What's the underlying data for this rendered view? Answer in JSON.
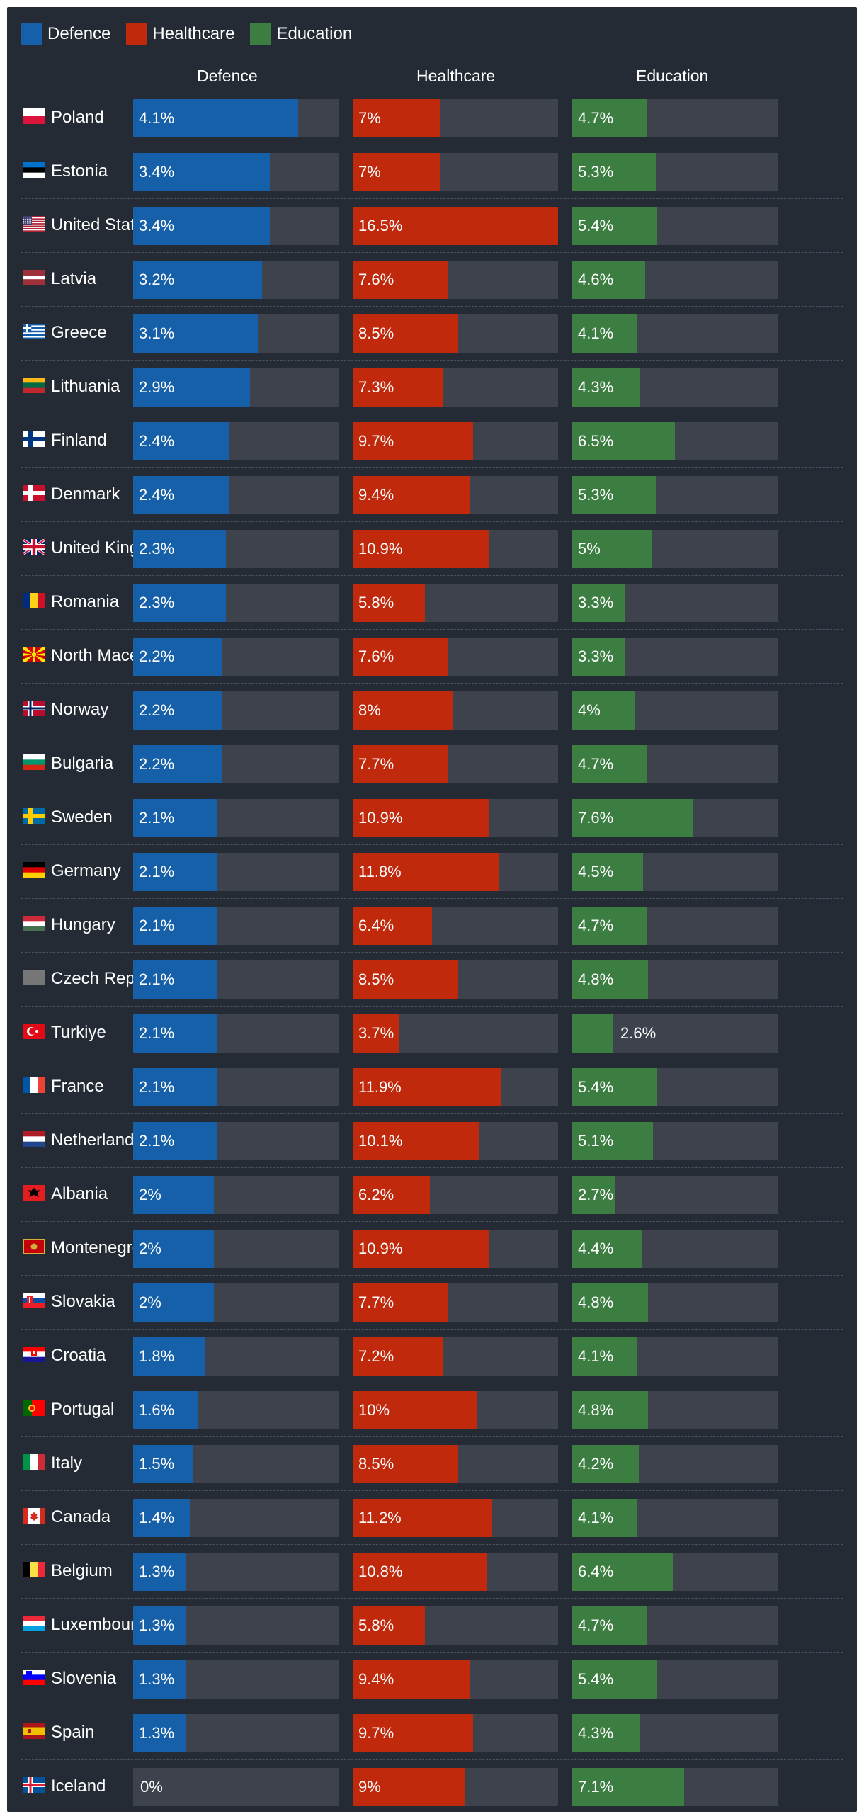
{
  "chart_data": {
    "type": "bar",
    "orientation": "horizontal",
    "layout": "small-multiples",
    "unit": "%",
    "legend": [
      {
        "name": "Defence",
        "color": "#1560a8"
      },
      {
        "name": "Healthcare",
        "color": "#c1290c"
      },
      {
        "name": "Education",
        "color": "#3c7d41"
      }
    ],
    "column_headers": [
      "Defence",
      "Healthcare",
      "Education"
    ],
    "scale_max": {
      "defence": 5.1,
      "healthcare": 16.5,
      "education": 13.0
    },
    "rows": [
      {
        "country": "Poland",
        "flag": "pl",
        "defence": 4.1,
        "healthcare": 7,
        "education": 4.7
      },
      {
        "country": "Estonia",
        "flag": "ee",
        "defence": 3.4,
        "healthcare": 7,
        "education": 5.3
      },
      {
        "country": "United States",
        "flag": "us",
        "defence": 3.4,
        "healthcare": 16.5,
        "education": 5.4
      },
      {
        "country": "Latvia",
        "flag": "lv",
        "defence": 3.2,
        "healthcare": 7.6,
        "education": 4.6
      },
      {
        "country": "Greece",
        "flag": "gr",
        "defence": 3.1,
        "healthcare": 8.5,
        "education": 4.1
      },
      {
        "country": "Lithuania",
        "flag": "lt",
        "defence": 2.9,
        "healthcare": 7.3,
        "education": 4.3
      },
      {
        "country": "Finland",
        "flag": "fi",
        "defence": 2.4,
        "healthcare": 9.7,
        "education": 6.5
      },
      {
        "country": "Denmark",
        "flag": "dk",
        "defence": 2.4,
        "healthcare": 9.4,
        "education": 5.3
      },
      {
        "country": "United Kingdom",
        "flag": "gb",
        "defence": 2.3,
        "healthcare": 10.9,
        "education": 5
      },
      {
        "country": "Romania",
        "flag": "ro",
        "defence": 2.3,
        "healthcare": 5.8,
        "education": 3.3
      },
      {
        "country": "North Macedonia",
        "flag": "mk",
        "defence": 2.2,
        "healthcare": 7.6,
        "education": 3.3
      },
      {
        "country": "Norway",
        "flag": "no",
        "defence": 2.2,
        "healthcare": 8,
        "education": 4
      },
      {
        "country": "Bulgaria",
        "flag": "bg",
        "defence": 2.2,
        "healthcare": 7.7,
        "education": 4.7
      },
      {
        "country": "Sweden",
        "flag": "se",
        "defence": 2.1,
        "healthcare": 10.9,
        "education": 7.6
      },
      {
        "country": "Germany",
        "flag": "de",
        "defence": 2.1,
        "healthcare": 11.8,
        "education": 4.5
      },
      {
        "country": "Hungary",
        "flag": "hu",
        "defence": 2.1,
        "healthcare": 6.4,
        "education": 4.7
      },
      {
        "country": "Czech Republic",
        "flag": "cz",
        "defence": 2.1,
        "healthcare": 8.5,
        "education": 4.8
      },
      {
        "country": "Turkiye",
        "flag": "tr",
        "defence": 2.1,
        "healthcare": 3.7,
        "education": 2.6
      },
      {
        "country": "France",
        "flag": "fr",
        "defence": 2.1,
        "healthcare": 11.9,
        "education": 5.4
      },
      {
        "country": "Netherlands",
        "flag": "nl",
        "defence": 2.1,
        "healthcare": 10.1,
        "education": 5.1
      },
      {
        "country": "Albania",
        "flag": "al",
        "defence": 2,
        "healthcare": 6.2,
        "education": 2.7
      },
      {
        "country": "Montenegro",
        "flag": "me",
        "defence": 2,
        "healthcare": 10.9,
        "education": 4.4
      },
      {
        "country": "Slovakia",
        "flag": "sk",
        "defence": 2,
        "healthcare": 7.7,
        "education": 4.8
      },
      {
        "country": "Croatia",
        "flag": "hr",
        "defence": 1.8,
        "healthcare": 7.2,
        "education": 4.1
      },
      {
        "country": "Portugal",
        "flag": "pt",
        "defence": 1.6,
        "healthcare": 10,
        "education": 4.8
      },
      {
        "country": "Italy",
        "flag": "it",
        "defence": 1.5,
        "healthcare": 8.5,
        "education": 4.2
      },
      {
        "country": "Canada",
        "flag": "ca",
        "defence": 1.4,
        "healthcare": 11.2,
        "education": 4.1
      },
      {
        "country": "Belgium",
        "flag": "be",
        "defence": 1.3,
        "healthcare": 10.8,
        "education": 6.4
      },
      {
        "country": "Luxembourg",
        "flag": "lu",
        "defence": 1.3,
        "healthcare": 5.8,
        "education": 4.7
      },
      {
        "country": "Slovenia",
        "flag": "si",
        "defence": 1.3,
        "healthcare": 9.4,
        "education": 5.4
      },
      {
        "country": "Spain",
        "flag": "es",
        "defence": 1.3,
        "healthcare": 9.7,
        "education": 4.3
      },
      {
        "country": "Iceland",
        "flag": "is",
        "defence": 0,
        "healthcare": 9,
        "education": 7.1
      }
    ]
  }
}
